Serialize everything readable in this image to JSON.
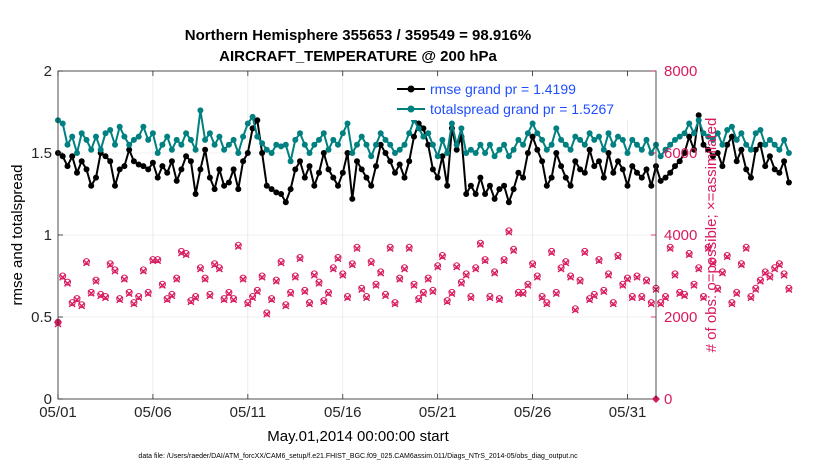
{
  "chart_data": {
    "type": "line",
    "title_line1": "Northern Hemisphere 355653 / 359549 = 98.916%",
    "title_line2": "AIRCRAFT_TEMPERATURE @ 200 hPa",
    "xlabel": "May.01,2014 00:00:00 start",
    "ylabel_left": "rmse and totalspread",
    "ylabel_right": "# of obs: o=possible; ×=assimilated",
    "footer": "data file: /Users/raeder/DAI/ATM_forcXX/CAM6_setup/f.e21.FHIST_BGC.f09_025.CAM6assim.011/Diags_NTrS_2014-05/obs_diag_output.nc",
    "xlim": [
      1,
      32.5
    ],
    "ylim_left": [
      0,
      2
    ],
    "ylim_right": [
      0,
      8000
    ],
    "x_ticks": [
      {
        "value": 1,
        "label": "05/01"
      },
      {
        "value": 6,
        "label": "05/06"
      },
      {
        "value": 11,
        "label": "05/11"
      },
      {
        "value": 16,
        "label": "05/16"
      },
      {
        "value": 21,
        "label": "05/21"
      },
      {
        "value": 26,
        "label": "05/26"
      },
      {
        "value": 31,
        "label": "05/31"
      }
    ],
    "y_ticks_left": [
      {
        "value": 0,
        "label": "0"
      },
      {
        "value": 0.5,
        "label": "0.5"
      },
      {
        "value": 1,
        "label": "1"
      },
      {
        "value": 1.5,
        "label": "1.5"
      },
      {
        "value": 2,
        "label": "2"
      }
    ],
    "y_ticks_right": [
      {
        "value": 0,
        "label": "0"
      },
      {
        "value": 2000,
        "label": "2000"
      },
      {
        "value": 4000,
        "label": "4000"
      },
      {
        "value": 6000,
        "label": "6000"
      },
      {
        "value": 8000,
        "label": "8000"
      }
    ],
    "x_start": 1,
    "x_step": 0.25,
    "series": [
      {
        "name": "rmse grand pr = 1.4199",
        "axis": "left",
        "color": "#000000",
        "marker": "circle",
        "values": [
          1.5,
          1.48,
          1.42,
          1.48,
          1.38,
          1.45,
          1.4,
          1.3,
          1.35,
          1.5,
          1.48,
          1.45,
          1.3,
          1.4,
          1.42,
          1.52,
          1.45,
          1.43,
          1.42,
          1.4,
          1.44,
          1.35,
          1.42,
          1.38,
          1.45,
          1.33,
          1.4,
          1.48,
          1.45,
          1.25,
          1.4,
          1.52,
          1.35,
          1.28,
          1.4,
          1.3,
          1.32,
          1.4,
          1.28,
          1.45,
          1.5,
          1.65,
          1.7,
          1.5,
          1.3,
          1.28,
          1.26,
          1.25,
          1.2,
          1.28,
          1.4,
          1.45,
          1.35,
          1.42,
          1.3,
          1.38,
          1.5,
          1.4,
          1.35,
          1.3,
          1.38,
          1.5,
          1.22,
          1.45,
          1.4,
          1.35,
          1.3,
          1.42,
          1.55,
          1.5,
          1.45,
          1.38,
          1.43,
          1.35,
          1.45,
          1.6,
          1.68,
          1.65,
          1.55,
          1.4,
          1.35,
          1.48,
          1.3,
          1.65,
          1.52,
          1.6,
          1.25,
          1.3,
          1.25,
          1.35,
          1.25,
          1.3,
          1.22,
          1.28,
          1.3,
          1.2,
          1.28,
          1.38,
          1.35,
          1.5,
          1.6,
          1.52,
          1.45,
          1.3,
          1.35,
          1.5,
          1.42,
          1.35,
          1.3,
          1.45,
          1.4,
          1.38,
          1.52,
          1.42,
          1.45,
          1.35,
          1.5,
          1.38,
          1.45,
          1.4,
          1.3,
          1.42,
          1.38,
          1.35,
          1.4,
          1.3,
          1.42,
          1.33,
          1.35,
          1.38,
          1.42,
          1.45,
          1.5,
          1.6,
          1.52,
          1.73,
          1.55,
          1.52,
          1.48,
          1.5,
          1.42,
          1.55,
          1.6,
          1.45,
          1.52,
          1.4,
          1.35,
          1.52,
          1.55,
          1.42,
          1.48,
          1.4,
          1.38,
          1.45,
          1.32
        ]
      },
      {
        "name": "totalspread grand pr = 1.5267",
        "axis": "left",
        "color": "#008080",
        "marker": "circle",
        "values": [
          1.7,
          1.68,
          1.55,
          1.6,
          1.5,
          1.62,
          1.58,
          1.52,
          1.6,
          1.52,
          1.62,
          1.64,
          1.55,
          1.66,
          1.6,
          1.55,
          1.58,
          1.6,
          1.66,
          1.58,
          1.62,
          1.5,
          1.55,
          1.6,
          1.52,
          1.58,
          1.55,
          1.62,
          1.58,
          1.52,
          1.76,
          1.58,
          1.62,
          1.55,
          1.6,
          1.52,
          1.55,
          1.58,
          1.5,
          1.6,
          1.68,
          1.72,
          1.6,
          1.56,
          1.52,
          1.5,
          1.55,
          1.54,
          1.55,
          1.45,
          1.58,
          1.62,
          1.55,
          1.5,
          1.55,
          1.58,
          1.62,
          1.52,
          1.58,
          1.55,
          1.62,
          1.68,
          1.5,
          1.55,
          1.6,
          1.55,
          1.48,
          1.55,
          1.62,
          1.58,
          1.55,
          1.5,
          1.52,
          1.55,
          1.62,
          1.7,
          1.65,
          1.6,
          1.62,
          1.55,
          1.48,
          1.58,
          1.5,
          1.68,
          1.55,
          1.65,
          1.5,
          1.52,
          1.5,
          1.55,
          1.5,
          1.55,
          1.48,
          1.52,
          1.55,
          1.48,
          1.52,
          1.58,
          1.55,
          1.62,
          1.68,
          1.62,
          1.58,
          1.52,
          1.55,
          1.65,
          1.58,
          1.55,
          1.52,
          1.6,
          1.58,
          1.55,
          1.62,
          1.58,
          1.6,
          1.52,
          1.62,
          1.55,
          1.6,
          1.58,
          1.5,
          1.58,
          1.55,
          1.52,
          1.58,
          1.5,
          1.55,
          1.48,
          1.52,
          1.55,
          1.58,
          1.6,
          1.62,
          1.68,
          1.62,
          1.7,
          1.62,
          1.6,
          1.58,
          1.62,
          1.55,
          1.64,
          1.66,
          1.58,
          1.62,
          1.55,
          1.52,
          1.62,
          1.64,
          1.55,
          1.58,
          1.55,
          1.52,
          1.58,
          1.5
        ]
      },
      {
        "name": "# obs possible",
        "axis": "right",
        "color": "#d81b60",
        "marker": "o",
        "values": [
          1870,
          3000,
          2850,
          2350,
          2450,
          2300,
          3350,
          2600,
          2900,
          2550,
          2500,
          3300,
          3150,
          2450,
          2950,
          2600,
          2350,
          2500,
          3150,
          2600,
          3400,
          3400,
          2800,
          2450,
          2550,
          2950,
          3600,
          3550,
          2400,
          2500,
          3200,
          2950,
          2550,
          3300,
          3200,
          2450,
          2600,
          2450,
          3750,
          2950,
          2350,
          2500,
          2650,
          3000,
          2100,
          2450,
          2900,
          3350,
          2300,
          2600,
          3000,
          3450,
          2650,
          2350,
          3050,
          2850,
          2400,
          2600,
          3200,
          3450,
          3050,
          2500,
          3300,
          3700,
          2700,
          2500,
          3350,
          2800,
          3100,
          2550,
          3700,
          2350,
          2950,
          3200,
          3700,
          2800,
          2450,
          2600,
          2950,
          2650,
          3250,
          3500,
          2400,
          2600,
          3250,
          2850,
          3050,
          2500,
          3200,
          3800,
          3400,
          2500,
          3100,
          2450,
          3400,
          4100,
          3650,
          2600,
          2600,
          2800,
          3300,
          3000,
          2500,
          2350,
          3600,
          2600,
          3200,
          3350,
          3000,
          2200,
          2900,
          3600,
          2450,
          2550,
          3400,
          2650,
          3050,
          2350,
          3500,
          2800,
          2950,
          2500,
          3000,
          2500,
          2900,
          2350,
          2700,
          2350,
          2500,
          3700,
          3050,
          2600,
          2550,
          3550,
          2800,
          3200,
          2500,
          3700,
          3350,
          2700,
          3100,
          3500,
          2350,
          2600,
          3300,
          3700,
          2500,
          2700,
          2900,
          3100,
          3000,
          3200,
          3300,
          3050,
          2700
        ]
      },
      {
        "name": "# obs assimilated",
        "axis": "right",
        "color": "#d81b60",
        "marker": "x",
        "values": [
          1830,
          2970,
          2820,
          2320,
          2420,
          2270,
          3320,
          2580,
          2870,
          2520,
          2470,
          3270,
          3120,
          2420,
          2920,
          2570,
          2320,
          2470,
          3120,
          2570,
          3370,
          3370,
          2770,
          2420,
          2520,
          2920,
          3560,
          3520,
          2370,
          2470,
          3170,
          2920,
          2520,
          3270,
          3170,
          2420,
          2570,
          2420,
          3720,
          2920,
          2320,
          2470,
          2620,
          2970,
          2070,
          2420,
          2870,
          3320,
          2270,
          2570,
          2970,
          3420,
          2620,
          2320,
          3020,
          2820,
          2370,
          2570,
          3170,
          3420,
          3020,
          2470,
          3270,
          3670,
          2670,
          2470,
          3320,
          2770,
          3070,
          2520,
          3670,
          2320,
          2920,
          3170,
          3670,
          2770,
          2420,
          2570,
          2920,
          2620,
          3220,
          3470,
          2370,
          2570,
          3220,
          2820,
          3020,
          2470,
          3170,
          3770,
          3370,
          2470,
          3070,
          2420,
          3370,
          4070,
          3620,
          2570,
          2570,
          2770,
          3270,
          2970,
          2470,
          2320,
          3570,
          2570,
          3170,
          3320,
          2970,
          2170,
          2870,
          3570,
          2420,
          2520,
          3370,
          2620,
          3020,
          2320,
          3470,
          2770,
          2920,
          2470,
          2970,
          2470,
          2870,
          2320,
          2670,
          2320,
          2470,
          3670,
          3020,
          2570,
          2520,
          3520,
          2770,
          3170,
          2470,
          3670,
          3320,
          2670,
          3070,
          3470,
          2320,
          2570,
          3270,
          3670,
          2470,
          2670,
          2870,
          3070,
          2970,
          3170,
          3270,
          3020,
          2670
        ]
      }
    ],
    "end_markers": [
      {
        "x": 1,
        "value": 1870,
        "axis": "right"
      },
      {
        "x": 32.5,
        "value": 0,
        "axis": "right"
      }
    ],
    "legend": {
      "position": "top-right"
    },
    "colors": {
      "rmse": "#000000",
      "spread": "#008080",
      "obs": "#d81b60",
      "legend_text": "#1f4fff",
      "grid": "#e0e0e0"
    }
  }
}
